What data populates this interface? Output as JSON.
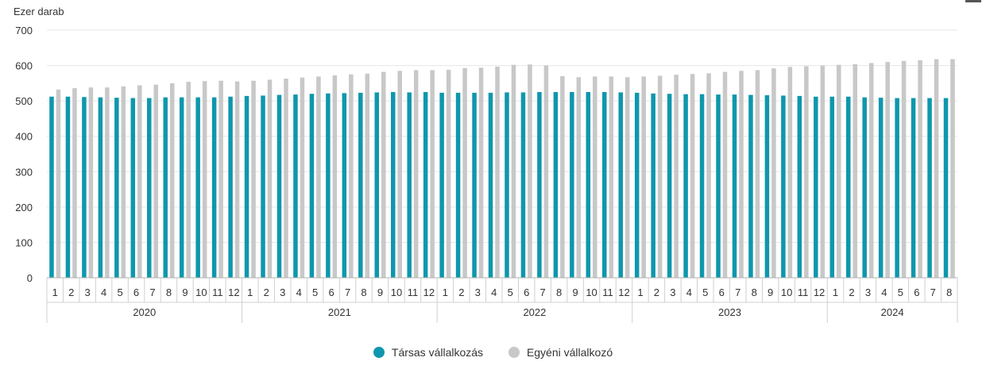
{
  "colors": {
    "tarsas": "#0e97ad",
    "egyeni": "#c8c8c8",
    "grid": "#e6e6e6",
    "axis": "#b0b0b0"
  },
  "legend": {
    "items": [
      {
        "label": "Társas vállalkozás",
        "color": "#0e97ad"
      },
      {
        "label": "Egyéni vállalkozó",
        "color": "#c8c8c8"
      }
    ]
  },
  "chart_data": {
    "type": "bar",
    "title": "",
    "ylabel": "Ezer darab",
    "xlabel": "",
    "ylim": [
      0,
      700
    ],
    "yticks": [
      0,
      100,
      200,
      300,
      400,
      500,
      600,
      700
    ],
    "grid": true,
    "legend_position": "bottom",
    "years": [
      {
        "label": "2020",
        "months": 12
      },
      {
        "label": "2021",
        "months": 12
      },
      {
        "label": "2022",
        "months": 12
      },
      {
        "label": "2023",
        "months": 12
      },
      {
        "label": "2024",
        "months": 8
      }
    ],
    "categories": [
      "1",
      "2",
      "3",
      "4",
      "5",
      "6",
      "7",
      "8",
      "9",
      "10",
      "11",
      "12",
      "1",
      "2",
      "3",
      "4",
      "5",
      "6",
      "7",
      "8",
      "9",
      "10",
      "11",
      "12",
      "1",
      "2",
      "3",
      "4",
      "5",
      "6",
      "7",
      "8",
      "9",
      "10",
      "11",
      "12",
      "1",
      "2",
      "3",
      "4",
      "5",
      "6",
      "7",
      "8",
      "9",
      "10",
      "11",
      "12",
      "1",
      "2",
      "3",
      "4",
      "5",
      "6",
      "7",
      "8"
    ],
    "series": [
      {
        "name": "Társas vállalkozás",
        "values": [
          512,
          512,
          511,
          510,
          509,
          508,
          508,
          510,
          510,
          510,
          510,
          512,
          514,
          515,
          517,
          518,
          520,
          521,
          522,
          523,
          524,
          525,
          524,
          525,
          523,
          523,
          523,
          523,
          524,
          524,
          525,
          525,
          525,
          525,
          525,
          524,
          523,
          521,
          520,
          519,
          519,
          518,
          518,
          517,
          516,
          515,
          514,
          512,
          512,
          512,
          510,
          509,
          508,
          508,
          508,
          508
        ]
      },
      {
        "name": "Egyéni vállalkozó",
        "values": [
          532,
          536,
          538,
          538,
          541,
          544,
          546,
          550,
          554,
          556,
          557,
          555,
          557,
          560,
          563,
          566,
          569,
          572,
          575,
          577,
          582,
          585,
          587,
          587,
          588,
          593,
          594,
          597,
          602,
          603,
          600,
          570,
          567,
          569,
          569,
          567,
          569,
          571,
          574,
          576,
          578,
          582,
          585,
          587,
          592,
          596,
          598,
          600,
          602,
          604,
          607,
          610,
          613,
          615,
          618,
          618
        ]
      }
    ]
  }
}
